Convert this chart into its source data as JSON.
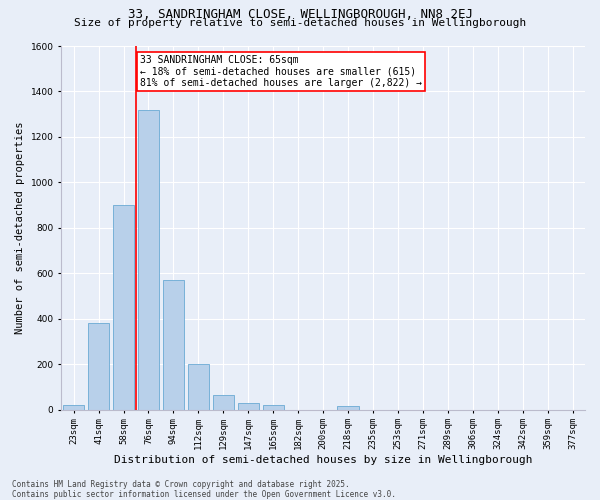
{
  "title": "33, SANDRINGHAM CLOSE, WELLINGBOROUGH, NN8 2EJ",
  "subtitle": "Size of property relative to semi-detached houses in Wellingborough",
  "xlabel": "Distribution of semi-detached houses by size in Wellingborough",
  "ylabel": "Number of semi-detached properties",
  "bar_labels": [
    "23sqm",
    "41sqm",
    "58sqm",
    "76sqm",
    "94sqm",
    "112sqm",
    "129sqm",
    "147sqm",
    "165sqm",
    "182sqm",
    "200sqm",
    "218sqm",
    "235sqm",
    "253sqm",
    "271sqm",
    "289sqm",
    "306sqm",
    "324sqm",
    "342sqm",
    "359sqm",
    "377sqm"
  ],
  "bar_values": [
    20,
    380,
    900,
    1320,
    570,
    200,
    65,
    30,
    20,
    0,
    0,
    15,
    0,
    0,
    0,
    0,
    0,
    0,
    0,
    0,
    0
  ],
  "property_bin_index": 2,
  "annotation_title": "33 SANDRINGHAM CLOSE: 65sqm",
  "annotation_line1": "← 18% of semi-detached houses are smaller (615)",
  "annotation_line2": "81% of semi-detached houses are larger (2,822) →",
  "ylim": [
    0,
    1600
  ],
  "yticks": [
    0,
    200,
    400,
    600,
    800,
    1000,
    1200,
    1400,
    1600
  ],
  "bar_color": "#b8d0ea",
  "bar_edge_color": "#6aaad4",
  "vline_color": "red",
  "bg_color": "#e8eef8",
  "grid_color": "#ffffff",
  "footer_line1": "Contains HM Land Registry data © Crown copyright and database right 2025.",
  "footer_line2": "Contains public sector information licensed under the Open Government Licence v3.0.",
  "title_fontsize": 9,
  "subtitle_fontsize": 8,
  "tick_fontsize": 6.5,
  "ylabel_fontsize": 7.5,
  "xlabel_fontsize": 8,
  "annotation_fontsize": 7,
  "footer_fontsize": 5.5
}
